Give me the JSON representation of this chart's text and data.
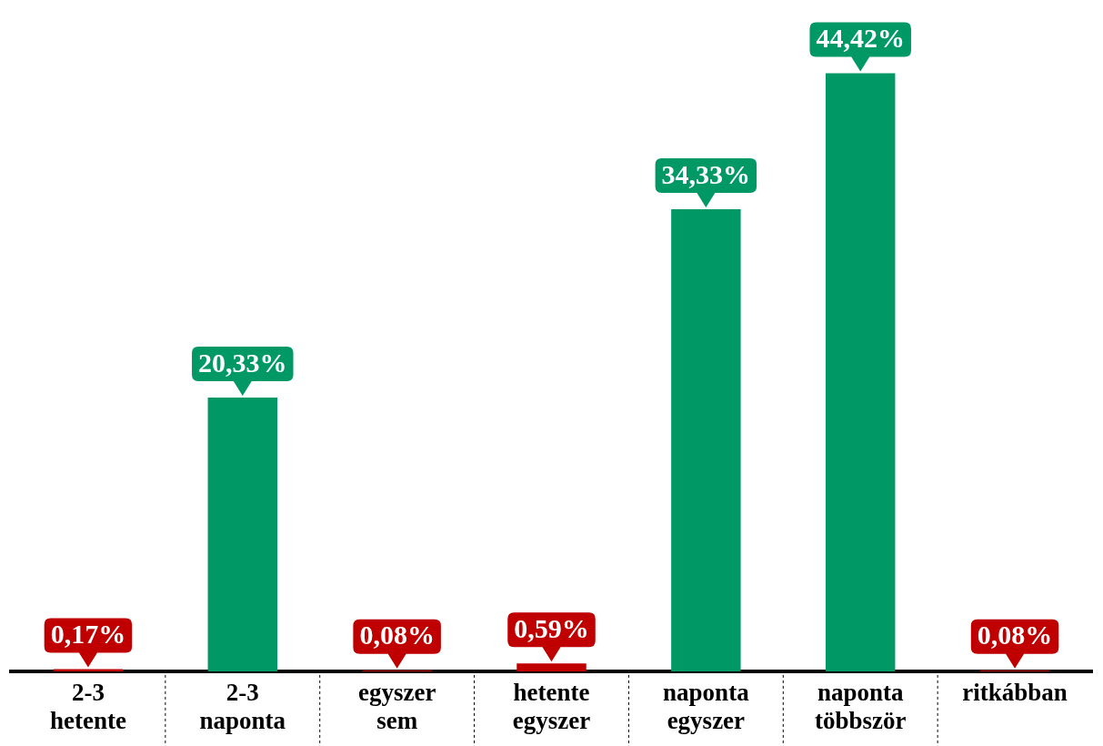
{
  "chart_data": {
    "type": "bar",
    "categories": [
      "2-3 hetente",
      "2-3 naponta",
      "egyszer sem",
      "hetente egyszer",
      "naponta egyszer",
      "naponta többször",
      "ritkábban"
    ],
    "values": [
      0.17,
      20.33,
      0.08,
      0.59,
      34.33,
      44.42,
      0.08
    ],
    "colors": [
      "#c00000",
      "#009966",
      "#c00000",
      "#c00000",
      "#009966",
      "#009966",
      "#c00000"
    ],
    "value_labels": [
      "0,17%",
      "20,33%",
      "0,08%",
      "0,59%",
      "34,33%",
      "44,42%",
      "0,08%"
    ],
    "tick_labels": "x",
    "legend": false
  }
}
